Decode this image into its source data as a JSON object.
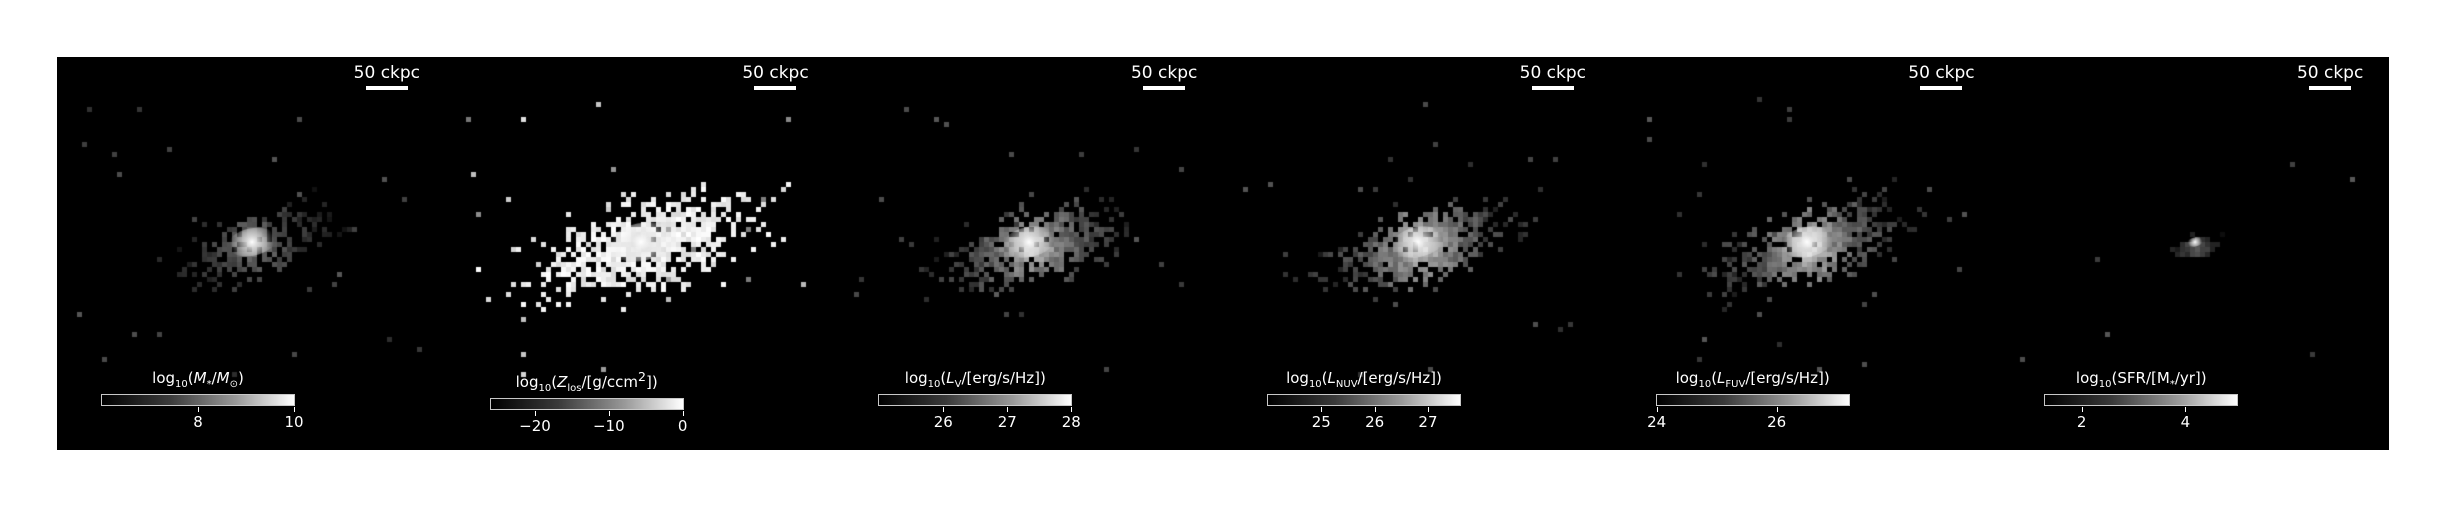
{
  "panels": [
    {
      "id": "stellar-mass",
      "scalebar": "50 ckpc",
      "colorbar": {
        "label_html": "log<sub>10</sub>(<i>M</i><sub>*</sub>/<i>M</i><sub>⊙</sub>)",
        "vmin": 6,
        "vmax": 10,
        "ticks": [
          8,
          10
        ],
        "tick_labels": [
          "8",
          "10"
        ]
      },
      "map": {
        "seed": 11,
        "n": 260,
        "spread": 55,
        "brightness": 0.45,
        "extent": "medium",
        "core": 1.0
      }
    },
    {
      "id": "metallicity",
      "scalebar": "50 ckpc",
      "colorbar": {
        "label_html": "log<sub>10</sub>(<i>Z</i><sub>los</sub>/[g/ccm<sup>2</sup>])",
        "vmin": -26,
        "vmax": 0,
        "ticks": [
          -20,
          -10,
          0
        ],
        "tick_labels": [
          "−20",
          "−10",
          "0"
        ]
      },
      "map": {
        "seed": 23,
        "n": 700,
        "spread": 75,
        "brightness": 0.95,
        "extent": "wide",
        "core": 1.0
      }
    },
    {
      "id": "v-band",
      "scalebar": "50 ckpc",
      "colorbar": {
        "label_html": "log<sub>10</sub>(<i>L</i><sub>V</sub>/[erg/s/Hz])",
        "vmin": 25,
        "vmax": 28,
        "ticks": [
          26,
          27,
          28
        ],
        "tick_labels": [
          "26",
          "27",
          "28"
        ]
      },
      "map": {
        "seed": 37,
        "n": 520,
        "spread": 60,
        "brightness": 0.7,
        "extent": "medium",
        "core": 1.0
      }
    },
    {
      "id": "nuv",
      "scalebar": "50 ckpc",
      "colorbar": {
        "label_html": "log<sub>10</sub>(<i>L</i><sub>NUV</sub>/[erg/s/Hz])",
        "vmin": 24,
        "vmax": 27.6,
        "ticks": [
          25,
          26,
          27
        ],
        "tick_labels": [
          "25",
          "26",
          "27"
        ]
      },
      "map": {
        "seed": 41,
        "n": 540,
        "spread": 60,
        "brightness": 0.75,
        "extent": "medium",
        "core": 1.0
      }
    },
    {
      "id": "fuv",
      "scalebar": "50 ckpc",
      "colorbar": {
        "label_html": "log<sub>10</sub>(<i>L</i><sub>FUV</sub>/[erg/s/Hz])",
        "vmin": 24,
        "vmax": 27.2,
        "ticks": [
          24,
          26
        ],
        "tick_labels": [
          "24",
          "26"
        ]
      },
      "map": {
        "seed": 53,
        "n": 540,
        "spread": 60,
        "brightness": 0.75,
        "extent": "medium",
        "core": 1.0
      }
    },
    {
      "id": "sfr",
      "scalebar": "50 ckpc",
      "colorbar": {
        "label_html": "log<sub>10</sub>(SFR/[M<sub>*</sub>/yr])",
        "vmin": 1.3,
        "vmax": 5.0,
        "ticks": [
          2,
          4
        ],
        "tick_labels": [
          "2",
          "4"
        ]
      },
      "map": {
        "seed": 67,
        "n": 60,
        "spread": 18,
        "brightness": 0.35,
        "extent": "compact",
        "core": 1.0
      }
    }
  ]
}
